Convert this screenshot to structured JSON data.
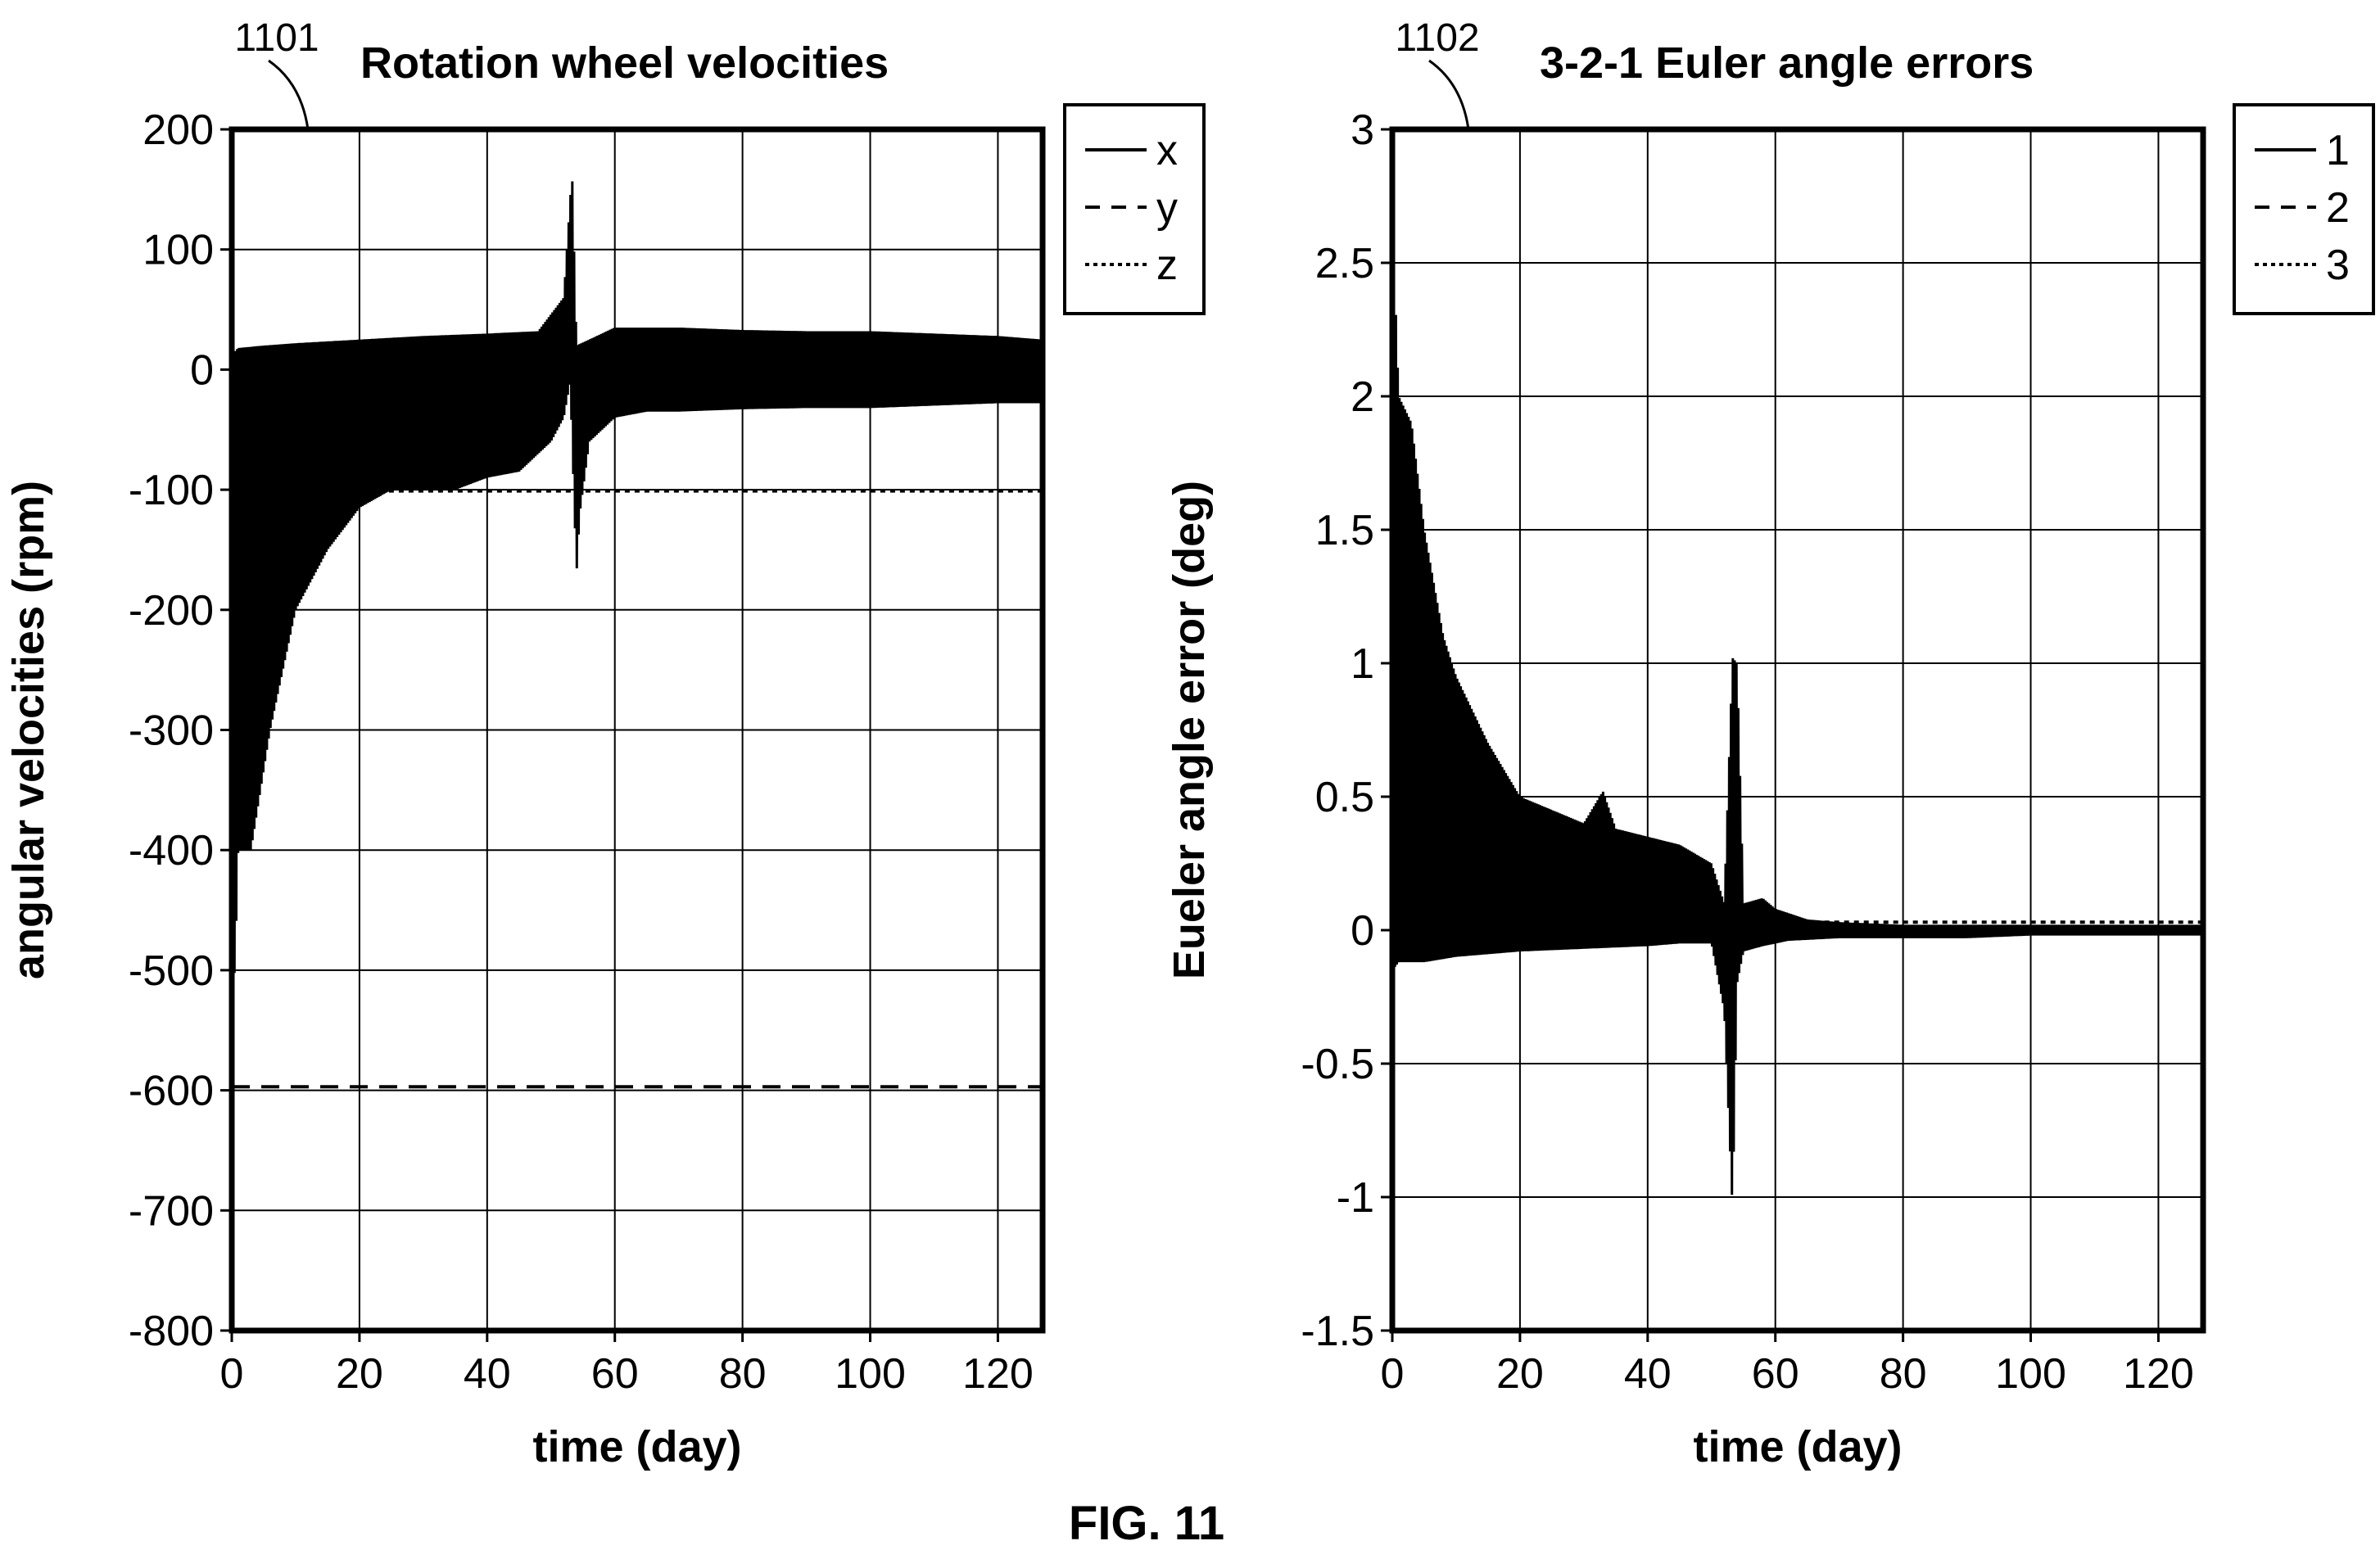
{
  "figure_label": "FIG. 11",
  "chart_data": [
    {
      "ref": "1101",
      "type": "line",
      "title": "Rotation wheel velocities",
      "xlabel": "time (day)",
      "ylabel": "angular velocities (rpm)",
      "xlim": [
        0,
        127
      ],
      "ylim": [
        -800,
        200
      ],
      "xticks": [
        0,
        20,
        40,
        60,
        80,
        100,
        120
      ],
      "yticks": [
        -800,
        -700,
        -600,
        -500,
        -400,
        -300,
        -200,
        -100,
        0,
        100,
        200
      ],
      "grid": true,
      "legend_position": "outside-top-right",
      "series": [
        {
          "name": "x",
          "style": "solid",
          "oscillating": true,
          "upper": {
            "x": [
              0,
              0.5,
              1,
              5,
              10,
              20,
              30,
              40,
              48,
              52,
              53.3,
              54,
              56,
              60,
              70,
              80,
              90,
              100,
              110,
              120,
              127
            ],
            "y": [
              -510,
              15,
              18,
              20,
              22,
              25,
              28,
              30,
              32,
              60,
              165,
              20,
              25,
              35,
              35,
              33,
              32,
              32,
              30,
              28,
              25
            ]
          },
          "lower": {
            "x": [
              0,
              0.5,
              1,
              3,
              6,
              10,
              15,
              20,
              25,
              30,
              35,
              40,
              45,
              50,
              52,
              53,
              54,
              54.5,
              56,
              60,
              65,
              70,
              80,
              90,
              100,
              110,
              120,
              127
            ],
            "y": [
              -515,
              -500,
              -400,
              -400,
              -300,
              -200,
              -150,
              -115,
              -100,
              -100,
              -100,
              -90,
              -85,
              -60,
              -40,
              -10,
              -170,
              -120,
              -60,
              -40,
              -35,
              -35,
              -33,
              -32,
              -32,
              -30,
              -28,
              -28
            ]
          }
        },
        {
          "name": "y",
          "style": "dashed",
          "x": [
            0,
            127
          ],
          "y": [
            -597,
            -597
          ]
        },
        {
          "name": "z",
          "style": "dotted",
          "x": [
            20,
            127
          ],
          "y": [
            -101,
            -101
          ]
        }
      ]
    },
    {
      "ref": "1102",
      "type": "line",
      "title": "3-2-1 Euler angle errors",
      "xlabel": "time (day)",
      "ylabel": "Eueler angle error (deg)",
      "xlim": [
        0,
        127
      ],
      "ylim": [
        -1.5,
        3
      ],
      "xticks": [
        0,
        20,
        40,
        60,
        80,
        100,
        120
      ],
      "yticks": [
        -1.5,
        -1,
        -0.5,
        0,
        0.5,
        1,
        1.5,
        2,
        2.5,
        3
      ],
      "ytick_labels": [
        "-1.5",
        "-1",
        "-0.5",
        "0",
        "0.5",
        "1",
        "1.5",
        "2",
        "2.5",
        "3"
      ],
      "grid": true,
      "legend_position": "outside-top-right",
      "series": [
        {
          "name": "1",
          "style": "solid",
          "oscillating": true,
          "upper": {
            "x": [
              0,
              0.5,
              1,
              3,
              5,
              8,
              10,
              15,
              20,
              25,
              30,
              33,
              35,
              40,
              45,
              50,
              52,
              53.3,
              54,
              55,
              58,
              60,
              65,
              70,
              80,
              90,
              100,
              110,
              120,
              127
            ],
            "y": [
              0.0,
              2.35,
              2.0,
              1.9,
              1.5,
              1.1,
              0.95,
              0.7,
              0.5,
              0.45,
              0.4,
              0.52,
              0.38,
              0.35,
              0.32,
              0.25,
              0.1,
              1.02,
              1.0,
              0.1,
              0.12,
              0.08,
              0.04,
              0.03,
              0.02,
              0.02,
              0.02,
              0.02,
              0.02,
              0.02
            ]
          },
          "lower": {
            "x": [
              0,
              1,
              5,
              10,
              20,
              30,
              40,
              45,
              50,
              52,
              53.3,
              54,
              55,
              58,
              62,
              70,
              80,
              90,
              100,
              110,
              120,
              127
            ],
            "y": [
              -0.15,
              -0.12,
              -0.12,
              -0.1,
              -0.08,
              -0.07,
              -0.06,
              -0.05,
              -0.05,
              -0.3,
              -1.05,
              -0.2,
              -0.08,
              -0.06,
              -0.04,
              -0.03,
              -0.03,
              -0.03,
              -0.02,
              -0.02,
              -0.02,
              -0.02
            ]
          }
        },
        {
          "name": "2",
          "style": "dashed",
          "x": [
            60,
            127
          ],
          "y": [
            0.0,
            0.0
          ]
        },
        {
          "name": "3",
          "style": "dotted",
          "x": [
            60,
            127
          ],
          "y": [
            0.03,
            0.03
          ]
        }
      ]
    }
  ]
}
